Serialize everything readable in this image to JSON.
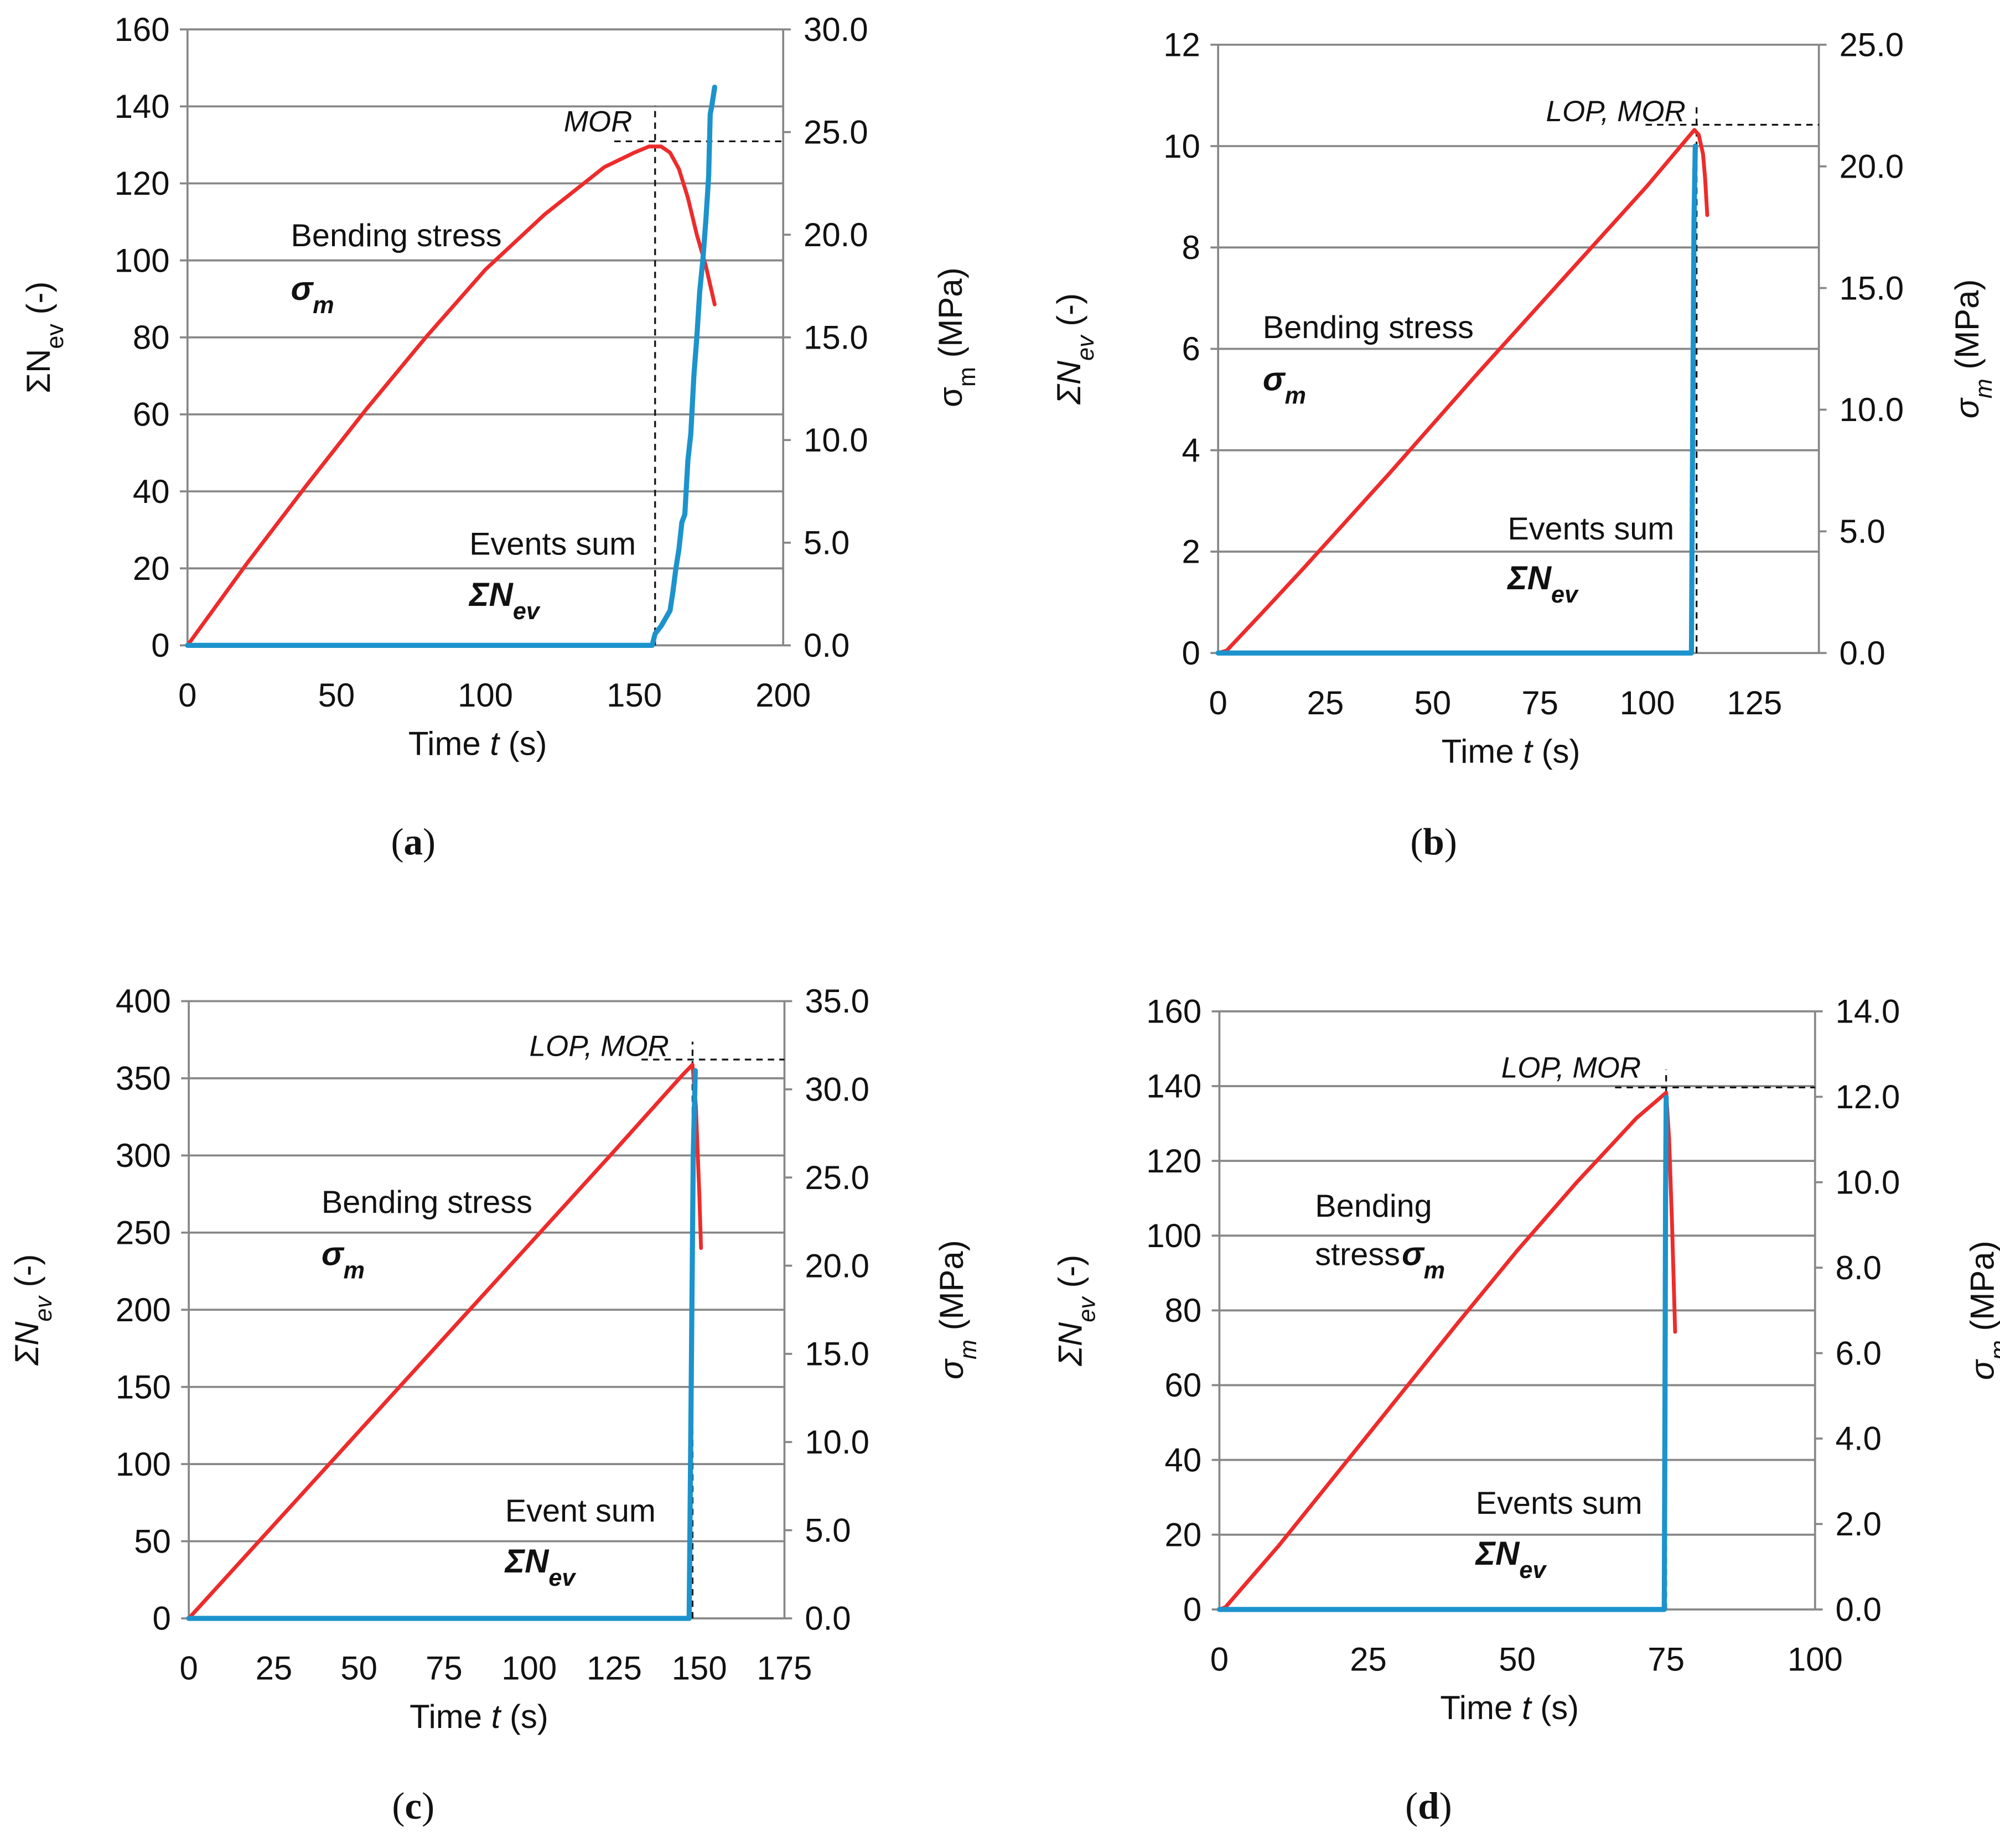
{
  "colors": {
    "stress": "#ee2b2b",
    "events": "#1c93cc",
    "grid": "#878787",
    "text": "#111111",
    "dash": "#111111"
  },
  "chart_data": [
    {
      "type": "line",
      "caption": "(a)",
      "xlabel": "Time t (s)",
      "ylabel_left": "ΣNev (-)",
      "ylabel_right": "σm (MPa)",
      "x_ticks": [
        "0",
        "50",
        "100",
        "150",
        "200"
      ],
      "xlim": [
        0,
        200
      ],
      "y_left_ticks": [
        "0",
        "20",
        "40",
        "60",
        "80",
        "100",
        "120",
        "140",
        "160"
      ],
      "y_left_lim": [
        0,
        160
      ],
      "y_right_ticks": [
        "0.0",
        "5.0",
        "10.0",
        "15.0",
        "20.0",
        "25.0",
        "30.0"
      ],
      "y_right_lim": [
        0,
        30
      ],
      "stress_label": "Bending stress",
      "stress_symbol": "σm",
      "events_label": "Events sum",
      "events_symbol": "ΣNev",
      "peak_label": "MOR",
      "peak": {
        "t": 157,
        "sigma": 24.3
      },
      "series": [
        {
          "name": "Bending stress σm",
          "axis": "right",
          "x": [
            0,
            20,
            40,
            60,
            80,
            100,
            120,
            140,
            150,
            155,
            159,
            162,
            165,
            168,
            171,
            174,
            177
          ],
          "values": [
            0,
            4.0,
            7.8,
            11.5,
            15.0,
            18.3,
            21.0,
            23.3,
            24.0,
            24.3,
            24.3,
            24.0,
            23.2,
            21.8,
            20.0,
            18.5,
            16.6
          ]
        },
        {
          "name": "Events sum ΣNev",
          "axis": "left",
          "x": [
            0,
            156,
            157,
            159,
            162,
            163,
            164,
            165,
            166,
            167,
            168,
            169,
            170,
            171,
            172,
            173,
            174,
            175,
            175.5,
            176,
            177
          ],
          "values": [
            0,
            0,
            3,
            5,
            9,
            14,
            20,
            25,
            32,
            34,
            48,
            55,
            70,
            80,
            92,
            100,
            110,
            122,
            138,
            140,
            145
          ]
        }
      ]
    },
    {
      "type": "line",
      "caption": "(b)",
      "xlabel": "Time t (s)",
      "ylabel_left": "ΣNev (-)",
      "ylabel_right": "σm (MPa)",
      "x_ticks": [
        "0",
        "25",
        "50",
        "75",
        "100",
        "125"
      ],
      "xlim": [
        0,
        140
      ],
      "y_left_ticks": [
        "0",
        "2",
        "4",
        "6",
        "8",
        "10",
        "12"
      ],
      "y_left_lim": [
        0,
        12
      ],
      "y_right_ticks": [
        "0.0",
        "5.0",
        "10.0",
        "15.0",
        "20.0",
        "25.0"
      ],
      "y_right_lim": [
        0,
        25
      ],
      "stress_label": "Bending stress",
      "stress_symbol": "σm",
      "events_label": "Events sum",
      "events_symbol": "ΣNev",
      "peak_label": "LOP, MOR",
      "peak": {
        "t": 111.5,
        "sigma": 21.5
      },
      "series": [
        {
          "name": "Bending stress σm",
          "axis": "right",
          "x": [
            0,
            2,
            10,
            20,
            40,
            60,
            80,
            100,
            111,
            112,
            113,
            113.5,
            114
          ],
          "values": [
            0,
            0.1,
            1.6,
            3.5,
            7.4,
            11.4,
            15.3,
            19.2,
            21.5,
            21.3,
            20.5,
            19.5,
            18.0
          ]
        },
        {
          "name": "Events sum ΣNev",
          "axis": "left",
          "x": [
            0,
            110.3,
            110.6,
            110.9,
            111.2
          ],
          "values": [
            0,
            0,
            4.5,
            8.5,
            10.0
          ]
        }
      ]
    },
    {
      "type": "line",
      "caption": "(c)",
      "xlabel": "Time t (s)",
      "ylabel_left": "ΣNev (-)",
      "ylabel_right": "σm (MPa)",
      "x_ticks": [
        "0",
        "25",
        "50",
        "75",
        "100",
        "125",
        "150",
        "175"
      ],
      "xlim": [
        0,
        175
      ],
      "y_left_ticks": [
        "0",
        "50",
        "100",
        "150",
        "200",
        "250",
        "300",
        "350",
        "400"
      ],
      "y_left_lim": [
        0,
        400
      ],
      "y_right_ticks": [
        "0.0",
        "5.0",
        "10.0",
        "15.0",
        "20.0",
        "25.0",
        "30.0",
        "35.0"
      ],
      "y_right_lim": [
        0,
        35
      ],
      "stress_label": "Bending stress",
      "stress_symbol": "σm",
      "events_label": "Event sum",
      "events_symbol": "ΣNev",
      "peak_label": "LOP, MOR",
      "peak": {
        "t": 148,
        "sigma": 31.4
      },
      "series": [
        {
          "name": "Bending stress σm",
          "axis": "right",
          "x": [
            0,
            25,
            50,
            75,
            100,
            125,
            145,
            148,
            149,
            150,
            150.5
          ],
          "values": [
            0,
            5.3,
            10.6,
            15.9,
            21.2,
            26.5,
            30.8,
            31.4,
            29.0,
            24.0,
            21.0
          ]
        },
        {
          "name": "Events sum ΣNev",
          "axis": "left",
          "x": [
            0,
            147,
            147.6,
            148.2,
            148.8
          ],
          "values": [
            0,
            0,
            150,
            300,
            355
          ]
        }
      ]
    },
    {
      "type": "line",
      "caption": "(d)",
      "xlabel": "Time t (s)",
      "ylabel_left": "ΣNev (-)",
      "ylabel_right": "σm (MPa)",
      "x_ticks": [
        "0",
        "25",
        "50",
        "75",
        "100"
      ],
      "xlim": [
        0,
        100
      ],
      "y_left_ticks": [
        "0",
        "20",
        "40",
        "60",
        "80",
        "100",
        "120",
        "140",
        "160"
      ],
      "y_left_lim": [
        0,
        160
      ],
      "y_right_ticks": [
        "0.0",
        "2.0",
        "4.0",
        "6.0",
        "8.0",
        "10.0",
        "12.0",
        "14.0"
      ],
      "y_right_lim": [
        0,
        14
      ],
      "stress_label": "Bending",
      "stress_label_2": "stress",
      "stress_symbol": "σm",
      "events_label": "Events sum",
      "events_symbol": "ΣNev",
      "peak_label": "LOP, MOR",
      "peak": {
        "t": 75,
        "sigma": 12.1
      },
      "series": [
        {
          "name": "Bending stress σm",
          "axis": "right",
          "x": [
            0,
            1,
            10,
            25,
            40,
            50,
            60,
            70,
            75,
            75.5,
            76,
            76.5
          ],
          "values": [
            0,
            0.05,
            1.5,
            4.1,
            6.7,
            8.4,
            10.0,
            11.5,
            12.1,
            11.0,
            9.0,
            6.5
          ]
        },
        {
          "name": "Events sum ΣNev",
          "axis": "left",
          "x": [
            0,
            74.7,
            74.8,
            74.9,
            75.0
          ],
          "values": [
            0,
            0,
            50,
            110,
            137
          ]
        }
      ]
    }
  ]
}
